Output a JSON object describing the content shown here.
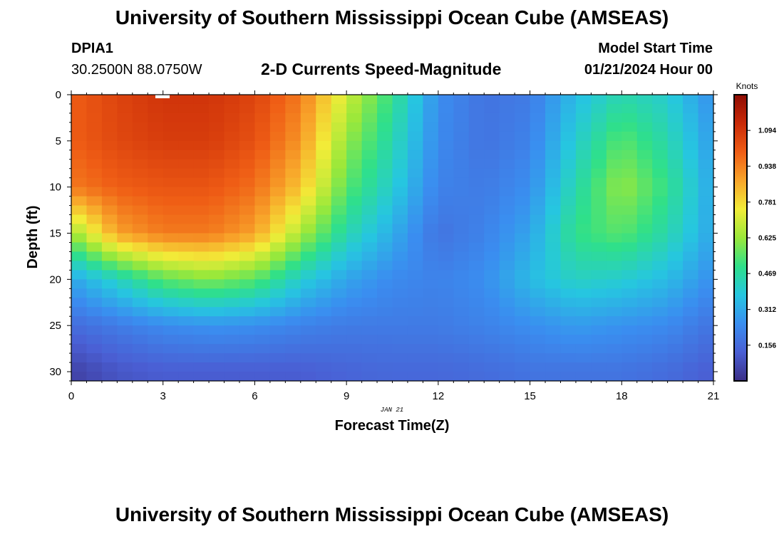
{
  "header": {
    "title": "University of Southern Mississippi Ocean Cube (AMSEAS)",
    "station_id": "DPIA1",
    "station_coords": "30.2500N  88.0750W",
    "subtitle": "2-D Currents Speed-Magnitude",
    "start_label": "Model Start Time",
    "start_value": "01/21/2024 Hour 00"
  },
  "footer": {
    "title": "University of Southern Mississippi Ocean Cube (AMSEAS)"
  },
  "chart_data": {
    "type": "heatmap",
    "title": "2-D Currents Speed-Magnitude",
    "xlabel": "Forecast Time(Z)",
    "ylabel": "Depth (ft)",
    "xlim": [
      0,
      21
    ],
    "ylim": [
      31,
      0
    ],
    "x_ticks": [
      0,
      3,
      6,
      9,
      12,
      15,
      18,
      21
    ],
    "y_ticks": [
      0,
      5,
      10,
      15,
      20,
      25,
      30
    ],
    "date_label": "JAN 21",
    "colorbar": {
      "units": "Knots",
      "range": [
        0.0,
        1.25
      ],
      "ticks": [
        0.156,
        0.312,
        0.469,
        0.625,
        0.781,
        0.938,
        1.094
      ],
      "tick_labels": [
        "0.156",
        "0.312",
        "0.469",
        "0.625",
        "0.781",
        "0.938",
        "1.094"
      ],
      "palette": [
        "#3b2e86",
        "#4a5fd4",
        "#3a8ef0",
        "#26c6e0",
        "#2fe08a",
        "#9ae83a",
        "#f2ec38",
        "#f8a52a",
        "#ef5d15",
        "#c92a08",
        "#8e0c04"
      ]
    },
    "depths_ft": [
      0,
      5,
      10,
      15,
      20,
      25,
      30
    ],
    "times_h": [
      0,
      1.5,
      3,
      4.5,
      6,
      7.5,
      9,
      10.5,
      12,
      13.5,
      15,
      16.5,
      18,
      19.5,
      21
    ],
    "values_knots": [
      [
        1.0,
        1.06,
        1.1,
        1.1,
        1.06,
        0.95,
        0.7,
        0.5,
        0.25,
        0.18,
        0.2,
        0.35,
        0.45,
        0.4,
        0.25
      ],
      [
        1.0,
        1.05,
        1.08,
        1.08,
        1.03,
        0.9,
        0.62,
        0.45,
        0.24,
        0.18,
        0.22,
        0.4,
        0.55,
        0.45,
        0.28
      ],
      [
        0.95,
        1.0,
        1.02,
        1.02,
        0.97,
        0.82,
        0.55,
        0.4,
        0.22,
        0.2,
        0.25,
        0.45,
        0.62,
        0.5,
        0.3
      ],
      [
        0.62,
        0.88,
        0.95,
        0.95,
        0.88,
        0.65,
        0.45,
        0.32,
        0.18,
        0.22,
        0.3,
        0.5,
        0.55,
        0.45,
        0.3
      ],
      [
        0.3,
        0.42,
        0.55,
        0.6,
        0.55,
        0.4,
        0.3,
        0.24,
        0.22,
        0.25,
        0.35,
        0.42,
        0.4,
        0.35,
        0.25
      ],
      [
        0.16,
        0.2,
        0.24,
        0.26,
        0.25,
        0.22,
        0.2,
        0.2,
        0.2,
        0.22,
        0.25,
        0.28,
        0.26,
        0.24,
        0.18
      ],
      [
        0.05,
        0.1,
        0.12,
        0.12,
        0.12,
        0.12,
        0.14,
        0.15,
        0.15,
        0.16,
        0.18,
        0.18,
        0.18,
        0.16,
        0.12
      ]
    ]
  }
}
